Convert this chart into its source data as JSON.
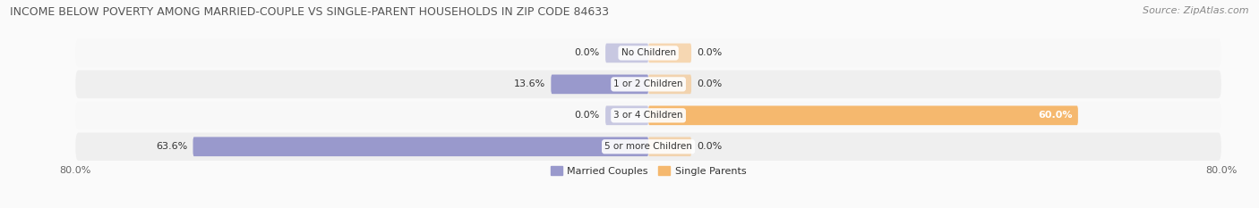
{
  "title": "INCOME BELOW POVERTY AMONG MARRIED-COUPLE VS SINGLE-PARENT HOUSEHOLDS IN ZIP CODE 84633",
  "source": "Source: ZipAtlas.com",
  "categories": [
    "No Children",
    "1 or 2 Children",
    "3 or 4 Children",
    "5 or more Children"
  ],
  "married_values": [
    0.0,
    13.6,
    0.0,
    63.6
  ],
  "single_values": [
    0.0,
    0.0,
    60.0,
    0.0
  ],
  "married_color": "#9999CC",
  "single_color": "#F5B86E",
  "axis_limit": 80.0,
  "title_fontsize": 9,
  "source_fontsize": 8,
  "label_fontsize": 8,
  "tick_fontsize": 8,
  "bar_height": 0.62,
  "row_colors": [
    "#EFEFEF",
    "#F8F8F8"
  ],
  "pill_color_dark": "#E0E0E8",
  "pill_color_light": "#ECECEC",
  "bg_color": "#FAFAFA",
  "zero_bar_width": 6.0
}
